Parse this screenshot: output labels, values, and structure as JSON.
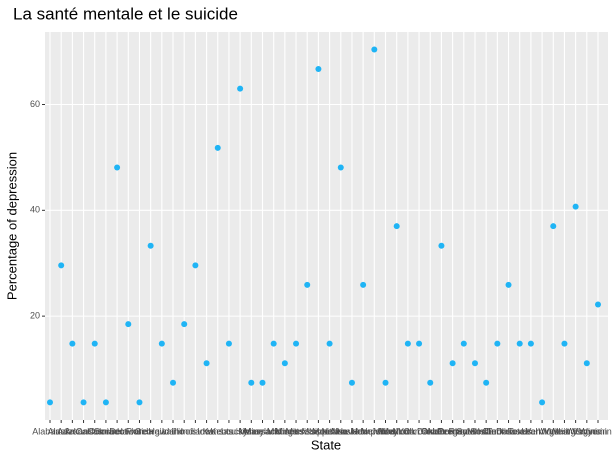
{
  "chart_data": {
    "type": "scatter",
    "title": "La santé mentale et le suicide",
    "x_label": "State",
    "y_label": "Percentage of depression",
    "categories": [
      "Alabama",
      "Alaska",
      "Arizona",
      "Arkansas",
      "California",
      "Colorado",
      "Connecticut",
      "Delaware",
      "Florida",
      "Georgia",
      "Hawaii",
      "Idaho",
      "Illinois",
      "Indiana",
      "Iowa",
      "Kansas",
      "Kentucky",
      "Louisiana",
      "Maine",
      "Maryland",
      "Massachusetts",
      "Michigan",
      "Minnesota",
      "Mississippi",
      "Missouri",
      "Montana",
      "Nebraska",
      "Nevada",
      "New Hampshire",
      "New Jersey",
      "New Mexico",
      "New York",
      "North Carolina",
      "North Dakota",
      "Ohio",
      "Oklahoma",
      "Oregon",
      "Pennsylvania",
      "Rhode Island",
      "South Carolina",
      "South Dakota",
      "Tennessee",
      "Texas",
      "Utah",
      "Vermont",
      "Virginia",
      "Washington",
      "West Virginia",
      "Wisconsin",
      "Wyoming"
    ],
    "values": [
      3.7,
      29.6,
      14.8,
      3.7,
      14.8,
      3.7,
      48.1,
      18.5,
      3.7,
      33.3,
      14.8,
      7.4,
      18.5,
      29.6,
      11.1,
      51.8,
      14.8,
      63.0,
      7.4,
      7.4,
      14.8,
      11.1,
      14.8,
      25.9,
      66.7,
      14.8,
      48.1,
      7.4,
      25.9,
      70.4,
      7.4,
      37.0,
      14.8,
      14.8,
      7.4,
      33.3,
      11.1,
      14.8,
      11.1,
      7.4,
      14.8,
      25.9,
      14.8,
      14.8,
      3.7,
      37.0,
      14.8,
      40.7,
      11.1,
      22.2
    ],
    "color": "#1fb4f5",
    "ylim": [
      0.37,
      73.7
    ],
    "yticks": [
      20,
      40,
      60
    ],
    "grid": true
  }
}
